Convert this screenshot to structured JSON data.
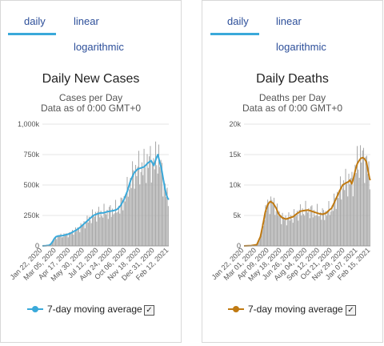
{
  "tabs": {
    "daily": "daily",
    "linear": "linear",
    "logarithmic": "logarithmic"
  },
  "legend_label": "7-day moving average",
  "checkbox_mark": "✓",
  "chart_data": [
    {
      "type": "bar",
      "title": "Daily New Cases",
      "subtitle": "Cases per Day",
      "subtitle2": "Data as of 0:00 GMT+0",
      "y_ticks": [
        "0",
        "250k",
        "500k",
        "750k",
        "1,000k"
      ],
      "ylim": [
        0,
        1000000
      ],
      "x_ticks": [
        "Jan 22, 2020",
        "Mar 05, 2020",
        "Apr 17, 2020",
        "May 30, 2020",
        "Jul 12, 2020",
        "Aug 24, 2020",
        "Oct 06, 2020",
        "Nov 18, 2020",
        "Dec 31, 2020",
        "Feb 12, 2021"
      ],
      "bar_color": "#a8a8a8",
      "line_color": "#3aa9da",
      "moving_average_points": [
        [
          0,
          0
        ],
        [
          10,
          2000
        ],
        [
          20,
          5000
        ],
        [
          25,
          15000
        ],
        [
          30,
          35000
        ],
        [
          35,
          60000
        ],
        [
          40,
          75000
        ],
        [
          45,
          80000
        ],
        [
          50,
          82000
        ],
        [
          60,
          85000
        ],
        [
          70,
          92000
        ],
        [
          80,
          100000
        ],
        [
          90,
          115000
        ],
        [
          100,
          130000
        ],
        [
          110,
          150000
        ],
        [
          120,
          175000
        ],
        [
          130,
          200000
        ],
        [
          140,
          225000
        ],
        [
          150,
          250000
        ],
        [
          160,
          262000
        ],
        [
          170,
          270000
        ],
        [
          180,
          272000
        ],
        [
          190,
          280000
        ],
        [
          200,
          285000
        ],
        [
          210,
          290000
        ],
        [
          220,
          300000
        ],
        [
          230,
          330000
        ],
        [
          240,
          380000
        ],
        [
          250,
          450000
        ],
        [
          260,
          540000
        ],
        [
          270,
          600000
        ],
        [
          280,
          630000
        ],
        [
          290,
          640000
        ],
        [
          300,
          650000
        ],
        [
          310,
          680000
        ],
        [
          320,
          700000
        ],
        [
          328,
          660000
        ],
        [
          335,
          720000
        ],
        [
          340,
          750000
        ],
        [
          345,
          690000
        ],
        [
          350,
          640000
        ],
        [
          355,
          560000
        ],
        [
          360,
          480000
        ],
        [
          365,
          420000
        ],
        [
          369,
          390000
        ],
        [
          372,
          380000
        ]
      ]
    },
    {
      "type": "bar",
      "title": "Daily Deaths",
      "subtitle": "Deaths per Day",
      "subtitle2": "Data as of 0:00 GMT+0",
      "y_ticks": [
        "0",
        "5k",
        "10k",
        "15k",
        "20k"
      ],
      "ylim": [
        0,
        20000
      ],
      "x_ticks": [
        "Jan 22, 2020",
        "Mar 01, 2020",
        "Apr 09, 2020",
        "May 18, 2020",
        "Jun 26, 2020",
        "Aug 04, 2020",
        "Sep 12, 2020",
        "Oct 21, 2020",
        "Nov 29, 2020",
        "Jan 07, 2021",
        "Feb 15, 2021"
      ],
      "bar_color": "#a8a8a8",
      "line_color": "#c07a12",
      "moving_average_points": [
        [
          0,
          0
        ],
        [
          20,
          50
        ],
        [
          35,
          200
        ],
        [
          45,
          1500
        ],
        [
          52,
          3500
        ],
        [
          58,
          5500
        ],
        [
          65,
          6800
        ],
        [
          72,
          7300
        ],
        [
          80,
          7000
        ],
        [
          88,
          6200
        ],
        [
          95,
          5200
        ],
        [
          105,
          4600
        ],
        [
          115,
          4400
        ],
        [
          125,
          4600
        ],
        [
          135,
          4800
        ],
        [
          145,
          5300
        ],
        [
          155,
          5700
        ],
        [
          165,
          5800
        ],
        [
          175,
          5900
        ],
        [
          185,
          5700
        ],
        [
          195,
          5500
        ],
        [
          205,
          5300
        ],
        [
          215,
          5200
        ],
        [
          225,
          5400
        ],
        [
          232,
          5800
        ],
        [
          240,
          6200
        ],
        [
          250,
          7500
        ],
        [
          260,
          8800
        ],
        [
          270,
          10000
        ],
        [
          278,
          10300
        ],
        [
          285,
          10500
        ],
        [
          290,
          10800
        ],
        [
          295,
          10200
        ],
        [
          300,
          11200
        ],
        [
          305,
          12500
        ],
        [
          310,
          13500
        ],
        [
          315,
          14000
        ],
        [
          320,
          14400
        ],
        [
          325,
          14500
        ],
        [
          330,
          14300
        ],
        [
          335,
          13800
        ],
        [
          340,
          12200
        ],
        [
          344,
          11000
        ],
        [
          346,
          10800
        ]
      ]
    }
  ]
}
